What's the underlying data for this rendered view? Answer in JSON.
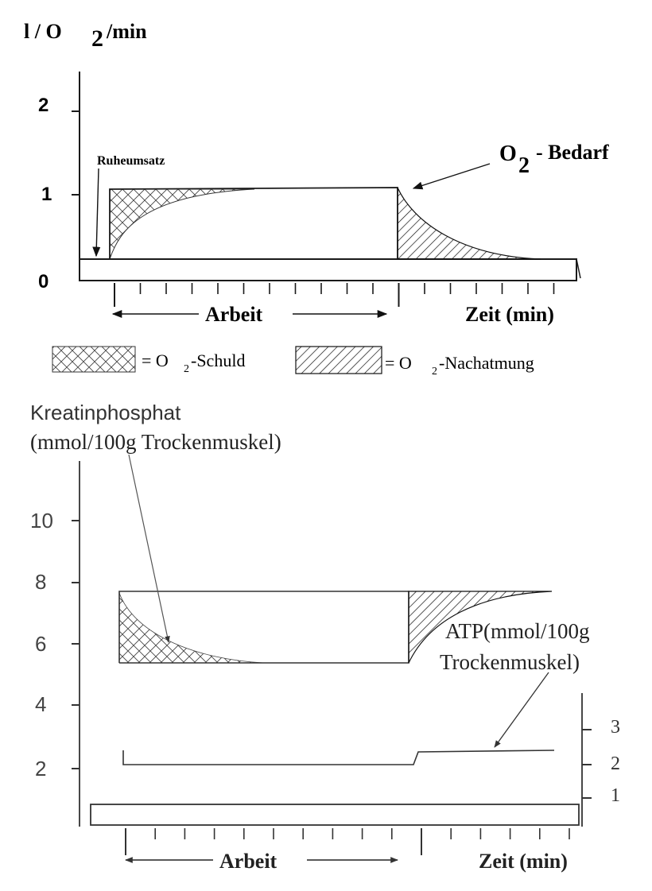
{
  "top": {
    "ylabel": "l / O",
    "ylabel_sub": "2",
    "ylabel_unit": "/min",
    "yticks": [
      "2",
      "1",
      "0"
    ],
    "rest_label": "Ruheumsatz",
    "demand_o": "O",
    "demand_sub": "2",
    "demand_text": "- Bedarf",
    "work_label": "Arbeit",
    "time_label": "Zeit (min)",
    "legend": {
      "debt_eq": "= O",
      "debt_sub": "2",
      "debt_text": "-Schuld",
      "post_eq": "= O",
      "post_sub": "2",
      "post_text": "-Nachatmung"
    }
  },
  "bottom": {
    "title_line1": "Kreatinphosphat",
    "title_line2": "(mmol/100g Trockenmuskel)",
    "yticks": [
      "10",
      "8",
      "6",
      "4",
      "2"
    ],
    "atp_line1": "ATP(mmol/100g",
    "atp_line2": "Trockenmuskel)",
    "atp_ticks": [
      "3",
      "2",
      "1"
    ],
    "work_label": "Arbeit",
    "time_label": "Zeit (min)"
  }
}
